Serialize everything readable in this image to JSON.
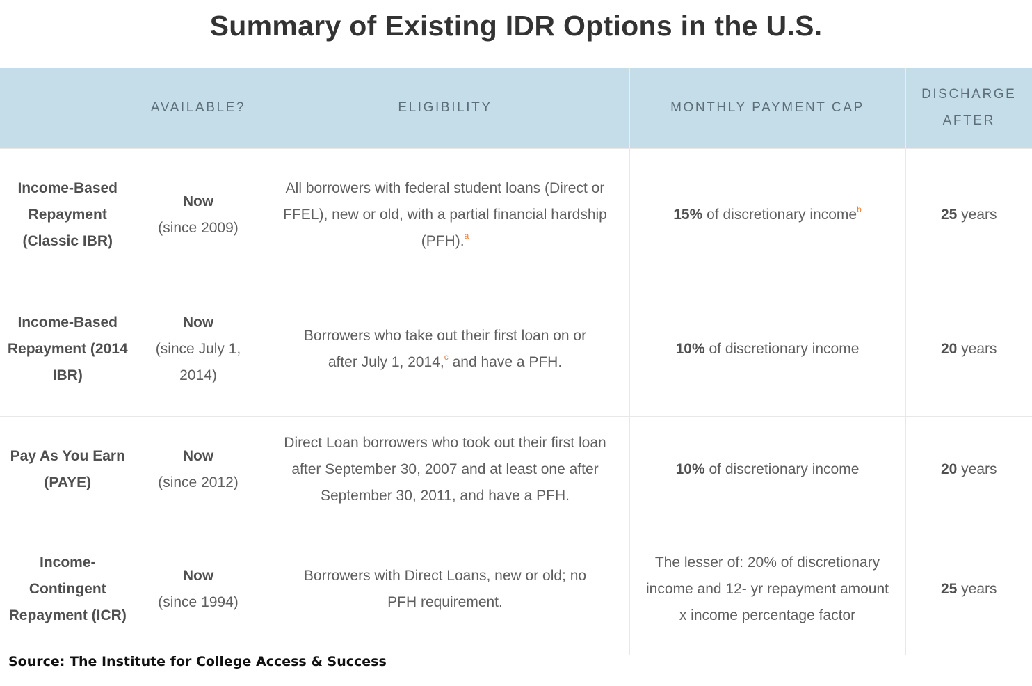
{
  "title": "Summary of Existing IDR Options in the U.S.",
  "columns": [
    "",
    "AVAILABLE?",
    "ELIGIBILITY",
    "MONTHLY PAYMENT CAP",
    "DISCHARGE AFTER"
  ],
  "rows": [
    {
      "plan": "Income-Based Repayment (Classic IBR)",
      "available_bold": "Now",
      "available_note": "(since 2009)",
      "eligibility": "All borrowers with federal student loans (Direct or FFEL), new or old, with a partial financial hardship (PFH).",
      "eligibility_footnote": "a",
      "eligibility_tail": "",
      "cap_bold": "15%",
      "cap_text": "of discretionary income",
      "cap_footnote": "b",
      "discharge_bold": "25",
      "discharge_text": "years"
    },
    {
      "plan": "Income-Based Repayment (2014 IBR)",
      "available_bold": "Now",
      "available_note": "(since July 1, 2014)",
      "eligibility": "Borrowers who take out their first loan on or after July 1, 2014,",
      "eligibility_footnote": "c",
      "eligibility_tail": " and have a PFH.",
      "cap_bold": "10%",
      "cap_text": "of discretionary income",
      "cap_footnote": "",
      "discharge_bold": "20",
      "discharge_text": "years"
    },
    {
      "plan": "Pay As You Earn (PAYE)",
      "available_bold": "Now",
      "available_note": "(since 2012)",
      "eligibility": "Direct Loan borrowers who took out their first loan after September 30, 2007 and at least one after September 30, 2011, and have a PFH.",
      "eligibility_footnote": "",
      "eligibility_tail": "",
      "cap_bold": "10%",
      "cap_text": "of discretionary income",
      "cap_footnote": "",
      "discharge_bold": "20",
      "discharge_text": "years"
    },
    {
      "plan": "Income-Contingent Repayment (ICR)",
      "available_bold": "Now",
      "available_note": "(since 1994)",
      "eligibility": "Borrowers with Direct Loans, new or old; no PFH requirement.",
      "eligibility_footnote": "",
      "eligibility_tail": "",
      "cap_bold": "",
      "cap_text": "The lesser of: 20% of discretionary income and 12- yr repayment amount x income percentage factor",
      "cap_footnote": "",
      "discharge_bold": "25",
      "discharge_text": "years"
    }
  ],
  "source": "Source: The Institute for College Access & Success",
  "colors": {
    "header_bg": "#c4dde8",
    "header_text": "#5c6f78",
    "footnote": "#e8823a",
    "title": "#333333"
  }
}
